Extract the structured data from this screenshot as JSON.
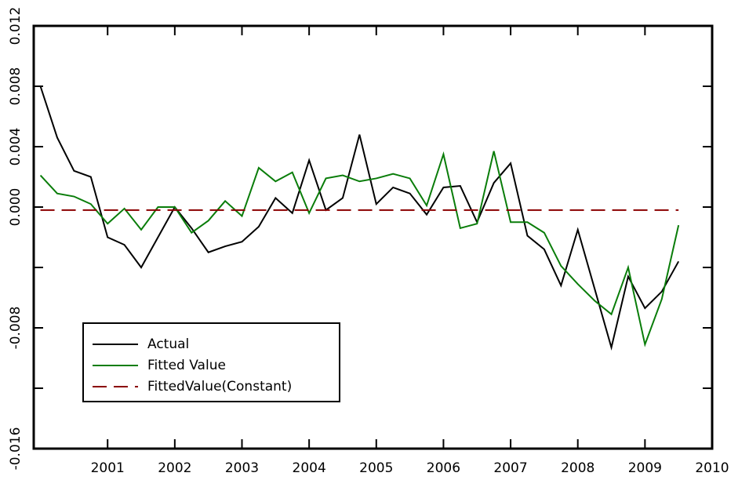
{
  "chart_data": {
    "type": "line",
    "x": [
      2000,
      2000.25,
      2000.5,
      2000.75,
      2001,
      2001.25,
      2001.5,
      2001.75,
      2002,
      2002.25,
      2002.5,
      2002.75,
      2003,
      2003.25,
      2003.5,
      2003.75,
      2004,
      2004.25,
      2004.5,
      2004.75,
      2005,
      2005.25,
      2005.5,
      2005.75,
      2006,
      2006.25,
      2006.5,
      2006.75,
      2007,
      2007.25,
      2007.5,
      2007.75,
      2008,
      2008.25,
      2008.5,
      2008.75,
      2009,
      2009.25,
      2009.5
    ],
    "series": [
      {
        "name": "Actual",
        "color": "#000000",
        "dash": false,
        "values": [
          0.008,
          0.0046,
          0.0024,
          0.002,
          -0.002,
          -0.0025,
          -0.004,
          -0.002,
          0.0,
          -0.0014,
          -0.003,
          -0.0026,
          -0.0023,
          -0.0013,
          0.0006,
          -0.0004,
          0.0031,
          -0.0002,
          0.0006,
          0.0048,
          0.0002,
          0.0013,
          0.0009,
          -0.0005,
          0.0013,
          0.0014,
          -0.001,
          0.0016,
          0.0029,
          -0.0019,
          -0.0028,
          -0.0052,
          -0.0015,
          -0.0054,
          -0.0093,
          -0.0046,
          -0.0067,
          -0.0056,
          -0.0036
        ]
      },
      {
        "name": "Fitted Value",
        "color": "#0a7d0a",
        "dash": false,
        "values": [
          0.0021,
          0.0009,
          0.0007,
          0.0002,
          -0.0011,
          -0.0001,
          -0.0015,
          0.0,
          0.0,
          -0.0017,
          -0.0009,
          0.0004,
          -0.0006,
          0.0026,
          0.0017,
          0.0023,
          -0.0004,
          0.0019,
          0.0021,
          0.0017,
          0.0019,
          0.0022,
          0.0019,
          0.0001,
          0.0035,
          -0.0014,
          -0.0011,
          0.0037,
          -0.001,
          -0.001,
          -0.0017,
          -0.0039,
          -0.0051,
          -0.0062,
          -0.0071,
          -0.004,
          -0.0091,
          -0.0061,
          -0.0012
        ]
      },
      {
        "name": "FittedValue(Constant)",
        "color": "#8b0000",
        "dash": true,
        "values": [
          -0.0002,
          -0.0002,
          -0.0002,
          -0.0002,
          -0.0002,
          -0.0002,
          -0.0002,
          -0.0002,
          -0.0002,
          -0.0002,
          -0.0002,
          -0.0002,
          -0.0002,
          -0.0002,
          -0.0002,
          -0.0002,
          -0.0002,
          -0.0002,
          -0.0002,
          -0.0002,
          -0.0002,
          -0.0002,
          -0.0002,
          -0.0002,
          -0.0002,
          -0.0002,
          -0.0002,
          -0.0002,
          -0.0002,
          -0.0002,
          -0.0002,
          -0.0002,
          -0.0002,
          -0.0002,
          -0.0002,
          -0.0002,
          -0.0002,
          -0.0002,
          -0.0002
        ]
      }
    ],
    "xlim": [
      1999.9,
      2010
    ],
    "xticks": [
      2001,
      2002,
      2003,
      2004,
      2005,
      2006,
      2007,
      2008,
      2009,
      2010
    ],
    "ylim": [
      -0.016,
      0.012
    ],
    "yticks": [
      {
        "value": -0.016,
        "label": "-0.016"
      },
      {
        "value": -0.012,
        "label": ""
      },
      {
        "value": -0.008,
        "label": "-0.008"
      },
      {
        "value": -0.004,
        "label": ""
      },
      {
        "value": 0.0,
        "label": "0.000"
      },
      {
        "value": 0.004,
        "label": "0.004"
      },
      {
        "value": 0.008,
        "label": "0.008"
      },
      {
        "value": 0.012,
        "label": "0.012"
      }
    ],
    "legend": "lower left"
  }
}
